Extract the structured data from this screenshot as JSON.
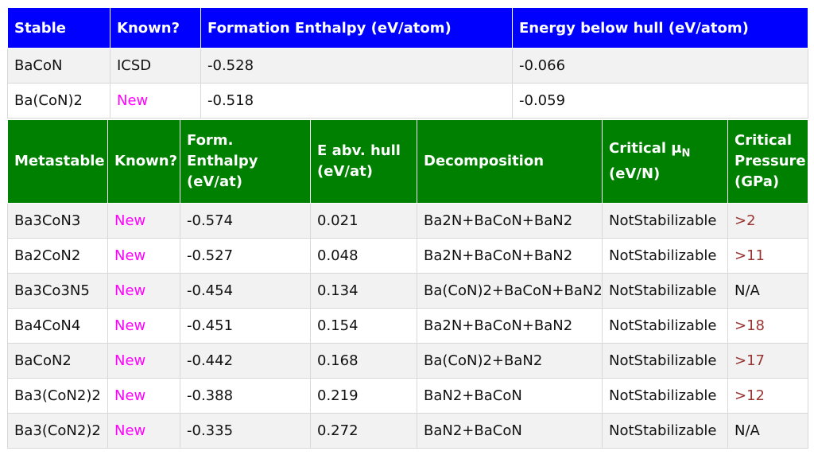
{
  "stable": {
    "headers": [
      "Stable",
      "Known?",
      "Formation Enthalpy (eV/atom)",
      "Energy below hull (eV/atom)"
    ],
    "rows": [
      {
        "compound": "BaCoN",
        "known": "ICSD",
        "enthalpy": "-0.528",
        "hull": "-0.066"
      },
      {
        "compound": "Ba(CoN)2",
        "known": "New",
        "enthalpy": "-0.518",
        "hull": "-0.059"
      }
    ]
  },
  "metastable": {
    "headers": {
      "compound": "Metastable",
      "known": "Known?",
      "enthalpy": "Form. Enthalpy (eV/at)",
      "hull": "E abv. hull (eV/at)",
      "decomp": "Decomposition",
      "mu_main": "Critical μ",
      "mu_sub": "N",
      "mu_unit": "(eV/N)",
      "pressure": "Critical Pressure (GPa)"
    },
    "rows": [
      {
        "compound": "Ba3CoN3",
        "known": "New",
        "enthalpy": "-0.574",
        "hull": "0.021",
        "decomp": "Ba2N+BaCoN+BaN2",
        "mu": "NotStabilizable",
        "pressure": ">2"
      },
      {
        "compound": "Ba2CoN2",
        "known": "New",
        "enthalpy": "-0.527",
        "hull": "0.048",
        "decomp": "Ba2N+BaCoN+BaN2",
        "mu": "NotStabilizable",
        "pressure": ">11"
      },
      {
        "compound": "Ba3Co3N5",
        "known": "New",
        "enthalpy": "-0.454",
        "hull": "0.134",
        "decomp": "Ba(CoN)2+BaCoN+BaN2",
        "mu": "NotStabilizable",
        "pressure": "N/A"
      },
      {
        "compound": "Ba4CoN4",
        "known": "New",
        "enthalpy": "-0.451",
        "hull": "0.154",
        "decomp": "Ba2N+BaCoN+BaN2",
        "mu": "NotStabilizable",
        "pressure": ">18"
      },
      {
        "compound": "BaCoN2",
        "known": "New",
        "enthalpy": "-0.442",
        "hull": "0.168",
        "decomp": "Ba(CoN)2+BaN2",
        "mu": "NotStabilizable",
        "pressure": ">17"
      },
      {
        "compound": "Ba3(CoN2)2",
        "known": "New",
        "enthalpy": "-0.388",
        "hull": "0.219",
        "decomp": "BaN2+BaCoN",
        "mu": "NotStabilizable",
        "pressure": ">12"
      },
      {
        "compound": "Ba3(CoN2)2",
        "known": "New",
        "enthalpy": "-0.335",
        "hull": "0.272",
        "decomp": "BaN2+BaCoN",
        "mu": "NotStabilizable",
        "pressure": "N/A"
      }
    ]
  },
  "colors": {
    "stable_header": "#0000ff",
    "metastable_header": "#008000",
    "new_text": "#ff00ff",
    "pressure_text": "#993333",
    "row_alt": "#f2f2f2"
  }
}
